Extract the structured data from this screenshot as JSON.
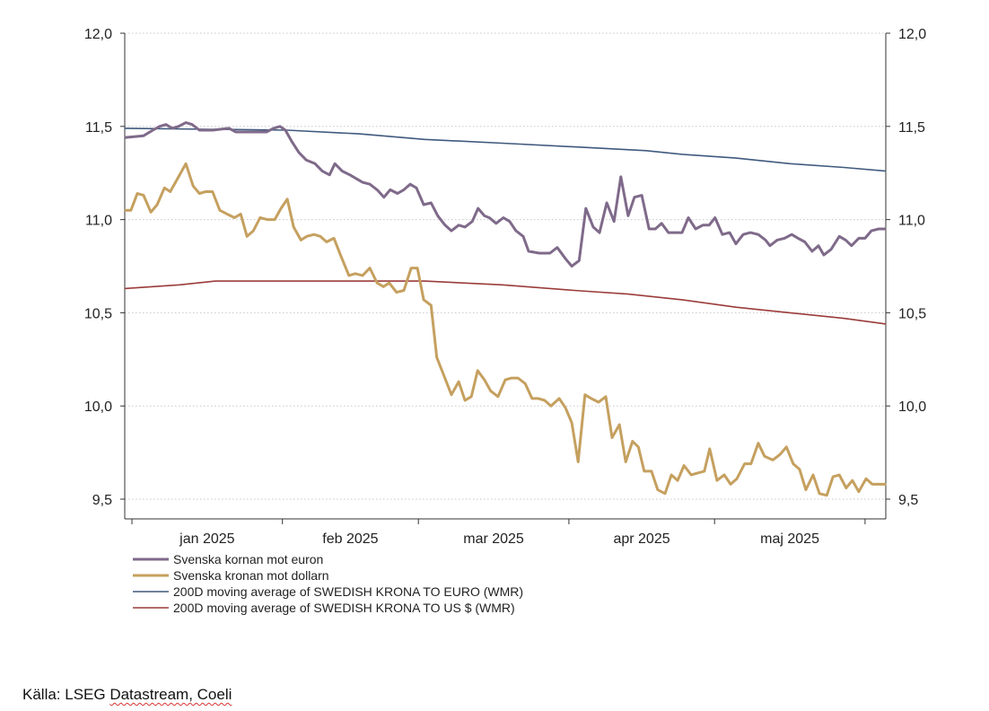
{
  "chart_data": {
    "type": "line",
    "title": "",
    "x_unit": "days since 2025-01-01",
    "xlim": [
      -1.5,
      155.3
    ],
    "ylim": [
      9.5,
      12.0
    ],
    "y_ticks": [
      "12,0",
      "11,5",
      "11,0",
      "10,5",
      "10,0",
      "9,5"
    ],
    "y_tick_values": [
      12.0,
      11.5,
      11.0,
      10.5,
      10.0,
      9.5
    ],
    "x_tick_days": [
      0,
      31,
      59,
      90,
      120,
      151
    ],
    "x_labels": [
      {
        "label": "jan 2025",
        "day": 15.5
      },
      {
        "label": "feb 2025",
        "day": 45
      },
      {
        "label": "mar 2025",
        "day": 74.5
      },
      {
        "label": "apr 2025",
        "day": 105
      },
      {
        "label": "maj 2025",
        "day": 135.5
      }
    ],
    "grid": true,
    "legend_position": "bottom-left",
    "series": [
      {
        "name": "Svenska kornan mot euron",
        "color": "#7f6a8a",
        "width": 3,
        "points": [
          [
            -1.5,
            11.44
          ],
          [
            2.4,
            11.45
          ],
          [
            4.3,
            11.48
          ],
          [
            5.7,
            11.5
          ],
          [
            7.0,
            11.51
          ],
          [
            8.3,
            11.49
          ],
          [
            9.6,
            11.5
          ],
          [
            11.1,
            11.52
          ],
          [
            12.4,
            11.51
          ],
          [
            13.9,
            11.48
          ],
          [
            16.6,
            11.48
          ],
          [
            20.0,
            11.49
          ],
          [
            21.4,
            11.47
          ],
          [
            22.7,
            11.47
          ],
          [
            24.6,
            11.47
          ],
          [
            26.4,
            11.47
          ],
          [
            27.7,
            11.47
          ],
          [
            29.2,
            11.49
          ],
          [
            30.5,
            11.5
          ],
          [
            31.6,
            11.48
          ],
          [
            32.9,
            11.42
          ],
          [
            34.4,
            11.36
          ],
          [
            35.9,
            11.32
          ],
          [
            37.7,
            11.3
          ],
          [
            39.2,
            11.26
          ],
          [
            40.7,
            11.24
          ],
          [
            41.8,
            11.3
          ],
          [
            43.3,
            11.26
          ],
          [
            44.9,
            11.24
          ],
          [
            46.2,
            11.22
          ],
          [
            47.5,
            11.2
          ],
          [
            49.0,
            11.19
          ],
          [
            50.5,
            11.16
          ],
          [
            51.9,
            11.12
          ],
          [
            53.2,
            11.16
          ],
          [
            54.7,
            11.14
          ],
          [
            56.0,
            11.16
          ],
          [
            57.3,
            11.19
          ],
          [
            58.6,
            11.17
          ],
          [
            60.1,
            11.08
          ],
          [
            61.6,
            11.09
          ],
          [
            63.0,
            11.02
          ],
          [
            64.5,
            10.97
          ],
          [
            65.8,
            10.94
          ],
          [
            67.3,
            10.97
          ],
          [
            68.6,
            10.96
          ],
          [
            70.1,
            10.99
          ],
          [
            71.3,
            11.06
          ],
          [
            72.6,
            11.02
          ],
          [
            73.6,
            11.01
          ],
          [
            75.0,
            10.98
          ],
          [
            76.5,
            11.01
          ],
          [
            77.8,
            10.99
          ],
          [
            79.1,
            10.94
          ],
          [
            80.6,
            10.91
          ],
          [
            81.7,
            10.83
          ],
          [
            83.9,
            10.82
          ],
          [
            86.1,
            10.82
          ],
          [
            87.6,
            10.85
          ],
          [
            89.3,
            10.79
          ],
          [
            90.6,
            10.75
          ],
          [
            92.1,
            10.78
          ],
          [
            93.5,
            11.06
          ],
          [
            95.0,
            10.96
          ],
          [
            96.3,
            10.93
          ],
          [
            97.8,
            11.09
          ],
          [
            99.3,
            10.99
          ],
          [
            100.7,
            11.23
          ],
          [
            102.2,
            11.02
          ],
          [
            103.5,
            11.12
          ],
          [
            105.0,
            11.13
          ],
          [
            106.5,
            10.95
          ],
          [
            107.8,
            10.95
          ],
          [
            109.1,
            10.98
          ],
          [
            110.5,
            10.93
          ],
          [
            112.0,
            10.93
          ],
          [
            113.3,
            10.93
          ],
          [
            114.6,
            11.01
          ],
          [
            116.1,
            10.95
          ],
          [
            117.6,
            10.97
          ],
          [
            118.9,
            10.97
          ],
          [
            120.1,
            11.01
          ],
          [
            121.6,
            10.92
          ],
          [
            123.1,
            10.93
          ],
          [
            124.4,
            10.87
          ],
          [
            125.9,
            10.92
          ],
          [
            127.4,
            10.93
          ],
          [
            129.0,
            10.92
          ],
          [
            130.5,
            10.89
          ],
          [
            131.4,
            10.86
          ],
          [
            132.9,
            10.89
          ],
          [
            134.4,
            10.9
          ],
          [
            135.9,
            10.92
          ],
          [
            137.2,
            10.9
          ],
          [
            138.6,
            10.88
          ],
          [
            140.1,
            10.83
          ],
          [
            141.4,
            10.86
          ],
          [
            142.5,
            10.81
          ],
          [
            144.0,
            10.84
          ],
          [
            145.7,
            10.91
          ],
          [
            147.0,
            10.89
          ],
          [
            148.2,
            10.86
          ],
          [
            149.7,
            10.9
          ],
          [
            151.0,
            10.9
          ],
          [
            152.3,
            10.94
          ],
          [
            153.8,
            10.95
          ],
          [
            155.3,
            10.95
          ]
        ]
      },
      {
        "name": "Svenska kronan mot dollarn",
        "color": "#c5a05f",
        "width": 3,
        "points": [
          [
            -1.5,
            11.05
          ],
          [
            -0.2,
            11.05
          ],
          [
            1.1,
            11.14
          ],
          [
            2.4,
            11.13
          ],
          [
            3.9,
            11.04
          ],
          [
            5.2,
            11.08
          ],
          [
            6.7,
            11.17
          ],
          [
            7.9,
            11.15
          ],
          [
            9.4,
            11.22
          ],
          [
            11.1,
            11.3
          ],
          [
            12.6,
            11.18
          ],
          [
            13.9,
            11.14
          ],
          [
            15.2,
            11.15
          ],
          [
            16.6,
            11.15
          ],
          [
            18.1,
            11.05
          ],
          [
            19.6,
            11.03
          ],
          [
            21.1,
            11.01
          ],
          [
            22.4,
            11.03
          ],
          [
            23.7,
            10.91
          ],
          [
            25.0,
            10.94
          ],
          [
            26.4,
            11.01
          ],
          [
            27.9,
            11.0
          ],
          [
            29.4,
            11.0
          ],
          [
            30.7,
            11.06
          ],
          [
            32.0,
            11.11
          ],
          [
            33.3,
            10.96
          ],
          [
            34.8,
            10.89
          ],
          [
            36.0,
            10.91
          ],
          [
            37.5,
            10.92
          ],
          [
            38.8,
            10.91
          ],
          [
            40.1,
            10.88
          ],
          [
            41.6,
            10.9
          ],
          [
            43.1,
            10.8
          ],
          [
            44.7,
            10.7
          ],
          [
            46.0,
            10.71
          ],
          [
            47.5,
            10.7
          ],
          [
            49.0,
            10.74
          ],
          [
            50.5,
            10.66
          ],
          [
            51.8,
            10.64
          ],
          [
            53.0,
            10.66
          ],
          [
            54.5,
            10.61
          ],
          [
            56.0,
            10.62
          ],
          [
            57.5,
            10.74
          ],
          [
            58.8,
            10.74
          ],
          [
            60.1,
            10.57
          ],
          [
            61.6,
            10.54
          ],
          [
            62.8,
            10.26
          ],
          [
            64.3,
            10.16
          ],
          [
            65.8,
            10.06
          ],
          [
            67.3,
            10.13
          ],
          [
            68.6,
            10.03
          ],
          [
            69.9,
            10.05
          ],
          [
            71.2,
            10.19
          ],
          [
            72.6,
            10.14
          ],
          [
            73.9,
            10.08
          ],
          [
            75.4,
            10.05
          ],
          [
            76.9,
            10.14
          ],
          [
            78.2,
            10.15
          ],
          [
            79.5,
            10.15
          ],
          [
            81.0,
            10.12
          ],
          [
            82.4,
            10.04
          ],
          [
            83.7,
            10.04
          ],
          [
            85.0,
            10.03
          ],
          [
            86.3,
            10.0
          ],
          [
            88.0,
            10.04
          ],
          [
            89.3,
            9.99
          ],
          [
            90.6,
            9.91
          ],
          [
            91.9,
            9.7
          ],
          [
            93.3,
            10.06
          ],
          [
            94.6,
            10.04
          ],
          [
            96.1,
            10.02
          ],
          [
            97.6,
            10.05
          ],
          [
            98.9,
            9.83
          ],
          [
            100.4,
            9.9
          ],
          [
            101.7,
            9.7
          ],
          [
            103.1,
            9.81
          ],
          [
            104.3,
            9.78
          ],
          [
            105.5,
            9.65
          ],
          [
            107.0,
            9.65
          ],
          [
            108.3,
            9.55
          ],
          [
            109.8,
            9.53
          ],
          [
            111.1,
            9.63
          ],
          [
            112.4,
            9.6
          ],
          [
            113.7,
            9.68
          ],
          [
            115.2,
            9.63
          ],
          [
            116.5,
            9.64
          ],
          [
            117.9,
            9.65
          ],
          [
            119.0,
            9.77
          ],
          [
            120.5,
            9.6
          ],
          [
            122.0,
            9.63
          ],
          [
            123.3,
            9.58
          ],
          [
            124.6,
            9.61
          ],
          [
            126.2,
            9.69
          ],
          [
            127.5,
            9.69
          ],
          [
            129.0,
            9.8
          ],
          [
            130.3,
            9.73
          ],
          [
            132.0,
            9.71
          ],
          [
            133.5,
            9.74
          ],
          [
            134.8,
            9.78
          ],
          [
            136.2,
            9.69
          ],
          [
            137.5,
            9.66
          ],
          [
            138.8,
            9.55
          ],
          [
            140.3,
            9.63
          ],
          [
            141.6,
            9.53
          ],
          [
            143.1,
            9.52
          ],
          [
            144.4,
            9.62
          ],
          [
            145.7,
            9.63
          ],
          [
            147.1,
            9.56
          ],
          [
            148.4,
            9.6
          ],
          [
            149.7,
            9.54
          ],
          [
            151.2,
            9.61
          ],
          [
            152.5,
            9.58
          ],
          [
            155.3,
            9.58
          ]
        ]
      },
      {
        "name": "200D moving average of SWEDISH KRONA TO EURO (WMR)",
        "color": "#3f5a7e",
        "width": 1.6,
        "points": [
          [
            -1.5,
            11.49
          ],
          [
            32.0,
            11.48
          ],
          [
            46.8,
            11.46
          ],
          [
            60.3,
            11.43
          ],
          [
            76.3,
            11.41
          ],
          [
            91.1,
            11.39
          ],
          [
            105.9,
            11.37
          ],
          [
            113.3,
            11.35
          ],
          [
            124.4,
            11.33
          ],
          [
            135.5,
            11.3
          ],
          [
            146.6,
            11.28
          ],
          [
            155.3,
            11.26
          ]
        ]
      },
      {
        "name": "200D moving average of SWEDISH KRONA TO US $ (WMR)",
        "color": "#9b3c3a",
        "width": 1.6,
        "points": [
          [
            -1.5,
            10.63
          ],
          [
            9.8,
            10.65
          ],
          [
            17.2,
            10.67
          ],
          [
            32.0,
            10.67
          ],
          [
            54.2,
            10.67
          ],
          [
            60.3,
            10.67
          ],
          [
            76.3,
            10.65
          ],
          [
            91.1,
            10.62
          ],
          [
            102.2,
            10.6
          ],
          [
            113.3,
            10.57
          ],
          [
            124.4,
            10.53
          ],
          [
            135.5,
            10.5
          ],
          [
            146.6,
            10.47
          ],
          [
            155.3,
            10.44
          ]
        ]
      }
    ]
  },
  "source": {
    "prefix": "Källa: LSEG ",
    "underlined": "Datastream, Coeli"
  }
}
